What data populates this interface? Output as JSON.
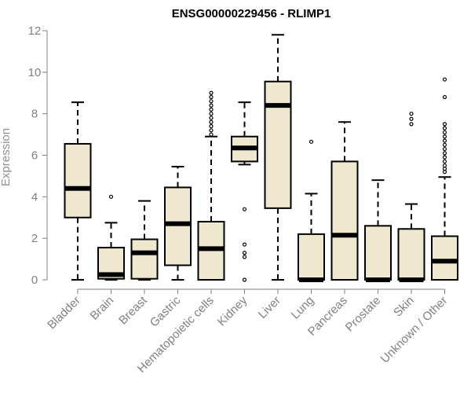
{
  "chart_data": {
    "type": "box",
    "title": "ENSG00000229456 - RLIMP1",
    "ylabel": "Expression",
    "xlabel": "",
    "ylim": [
      0,
      12
    ],
    "yticks": [
      0,
      2,
      4,
      6,
      8,
      10,
      12
    ],
    "categories": [
      "Bladder",
      "Brain",
      "Breast",
      "Gastric",
      "Hematopoietic cells",
      "Kidney",
      "Liver",
      "Lung",
      "Pancreas",
      "Prostate",
      "Skin",
      "Unknown / Other"
    ],
    "boxes": [
      {
        "category": "Bladder",
        "min": 0,
        "q1": 3.0,
        "median": 4.4,
        "q3": 6.55,
        "max": 8.55,
        "outliers": []
      },
      {
        "category": "Brain",
        "min": 0,
        "q1": 0.05,
        "median": 0.25,
        "q3": 1.55,
        "max": 2.75,
        "outliers": [
          4.0
        ]
      },
      {
        "category": "Breast",
        "min": 0,
        "q1": 0.05,
        "median": 1.3,
        "q3": 1.95,
        "max": 3.8,
        "outliers": []
      },
      {
        "category": "Gastric",
        "min": 0,
        "q1": 0.7,
        "median": 2.7,
        "q3": 4.45,
        "max": 5.45,
        "outliers": []
      },
      {
        "category": "Hematopoietic cells",
        "min": 0,
        "q1": 0,
        "median": 1.5,
        "q3": 2.8,
        "max": 6.9,
        "outliers": [
          7.0,
          7.2,
          7.4,
          7.6,
          7.8,
          8.0,
          8.2,
          8.4,
          8.6,
          8.8,
          9.0
        ]
      },
      {
        "category": "Kidney",
        "min": 5.55,
        "q1": 5.7,
        "median": 6.35,
        "q3": 6.9,
        "max": 8.55,
        "outliers": [
          3.4,
          1.7,
          1.3,
          1.1,
          0
        ]
      },
      {
        "category": "Liver",
        "min": 0,
        "q1": 3.45,
        "median": 8.4,
        "q3": 9.55,
        "max": 11.8,
        "outliers": []
      },
      {
        "category": "Lung",
        "min": 0,
        "q1": 0,
        "median": 0,
        "q3": 2.2,
        "max": 4.15,
        "outliers": [
          6.65
        ]
      },
      {
        "category": "Pancreas",
        "min": 0,
        "q1": 0,
        "median": 2.15,
        "q3": 5.7,
        "max": 7.6,
        "outliers": []
      },
      {
        "category": "Prostate",
        "min": 0,
        "q1": 0,
        "median": 0,
        "q3": 2.6,
        "max": 4.8,
        "outliers": []
      },
      {
        "category": "Skin",
        "min": 0,
        "q1": 0,
        "median": 0,
        "q3": 2.45,
        "max": 3.65,
        "outliers": [
          7.5,
          7.75,
          8.0
        ]
      },
      {
        "category": "Unknown / Other",
        "min": 0,
        "q1": 0,
        "median": 0.9,
        "q3": 2.1,
        "max": 4.95,
        "outliers": [
          5.2,
          5.35,
          5.5,
          5.7,
          5.9,
          6.1,
          6.3,
          6.5,
          6.7,
          6.9,
          7.1,
          7.3,
          7.5,
          8.8,
          9.65
        ]
      }
    ],
    "colors": {
      "box_fill": "#efe8cf",
      "axis": "#808080",
      "lines": "#000000"
    },
    "grid": false
  }
}
